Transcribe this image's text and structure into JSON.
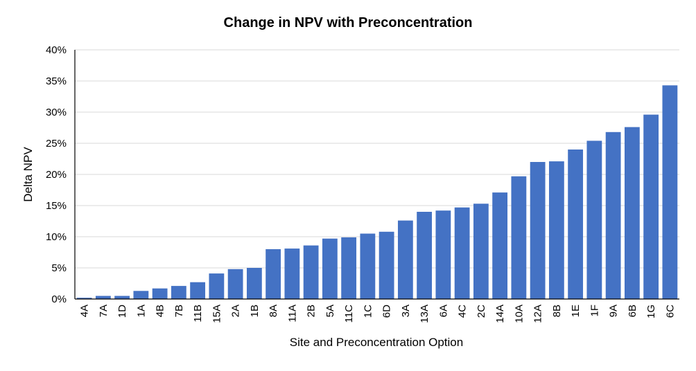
{
  "chart_data": {
    "type": "bar",
    "title": "Change in NPV with Preconcentration",
    "xlabel": "Site and Preconcentration Option",
    "ylabel": "Delta NPV",
    "ylim": [
      0,
      40
    ],
    "ytick_labels": [
      "0%",
      "5%",
      "10%",
      "15%",
      "20%",
      "25%",
      "30%",
      "35%",
      "40%"
    ],
    "grid": true,
    "legend": "none",
    "bar_color": "#4472C4",
    "categories": [
      "4A",
      "7A",
      "1D",
      "1A",
      "4B",
      "7B",
      "11B",
      "15A",
      "2A",
      "1B",
      "8A",
      "11A",
      "2B",
      "5A",
      "11C",
      "1C",
      "6D",
      "3A",
      "13A",
      "6A",
      "4C",
      "2C",
      "14A",
      "10A",
      "12A",
      "8B",
      "1E",
      "1F",
      "9A",
      "6B",
      "1G",
      "6C"
    ],
    "values": [
      0.2,
      0.5,
      0.5,
      1.3,
      1.7,
      2.1,
      2.7,
      4.1,
      4.8,
      5.0,
      8.0,
      8.1,
      8.6,
      9.7,
      9.9,
      10.5,
      10.8,
      12.6,
      14.0,
      14.2,
      14.7,
      15.3,
      17.1,
      19.7,
      22.0,
      22.1,
      24.0,
      25.4,
      26.8,
      27.6,
      29.6,
      34.3
    ]
  }
}
